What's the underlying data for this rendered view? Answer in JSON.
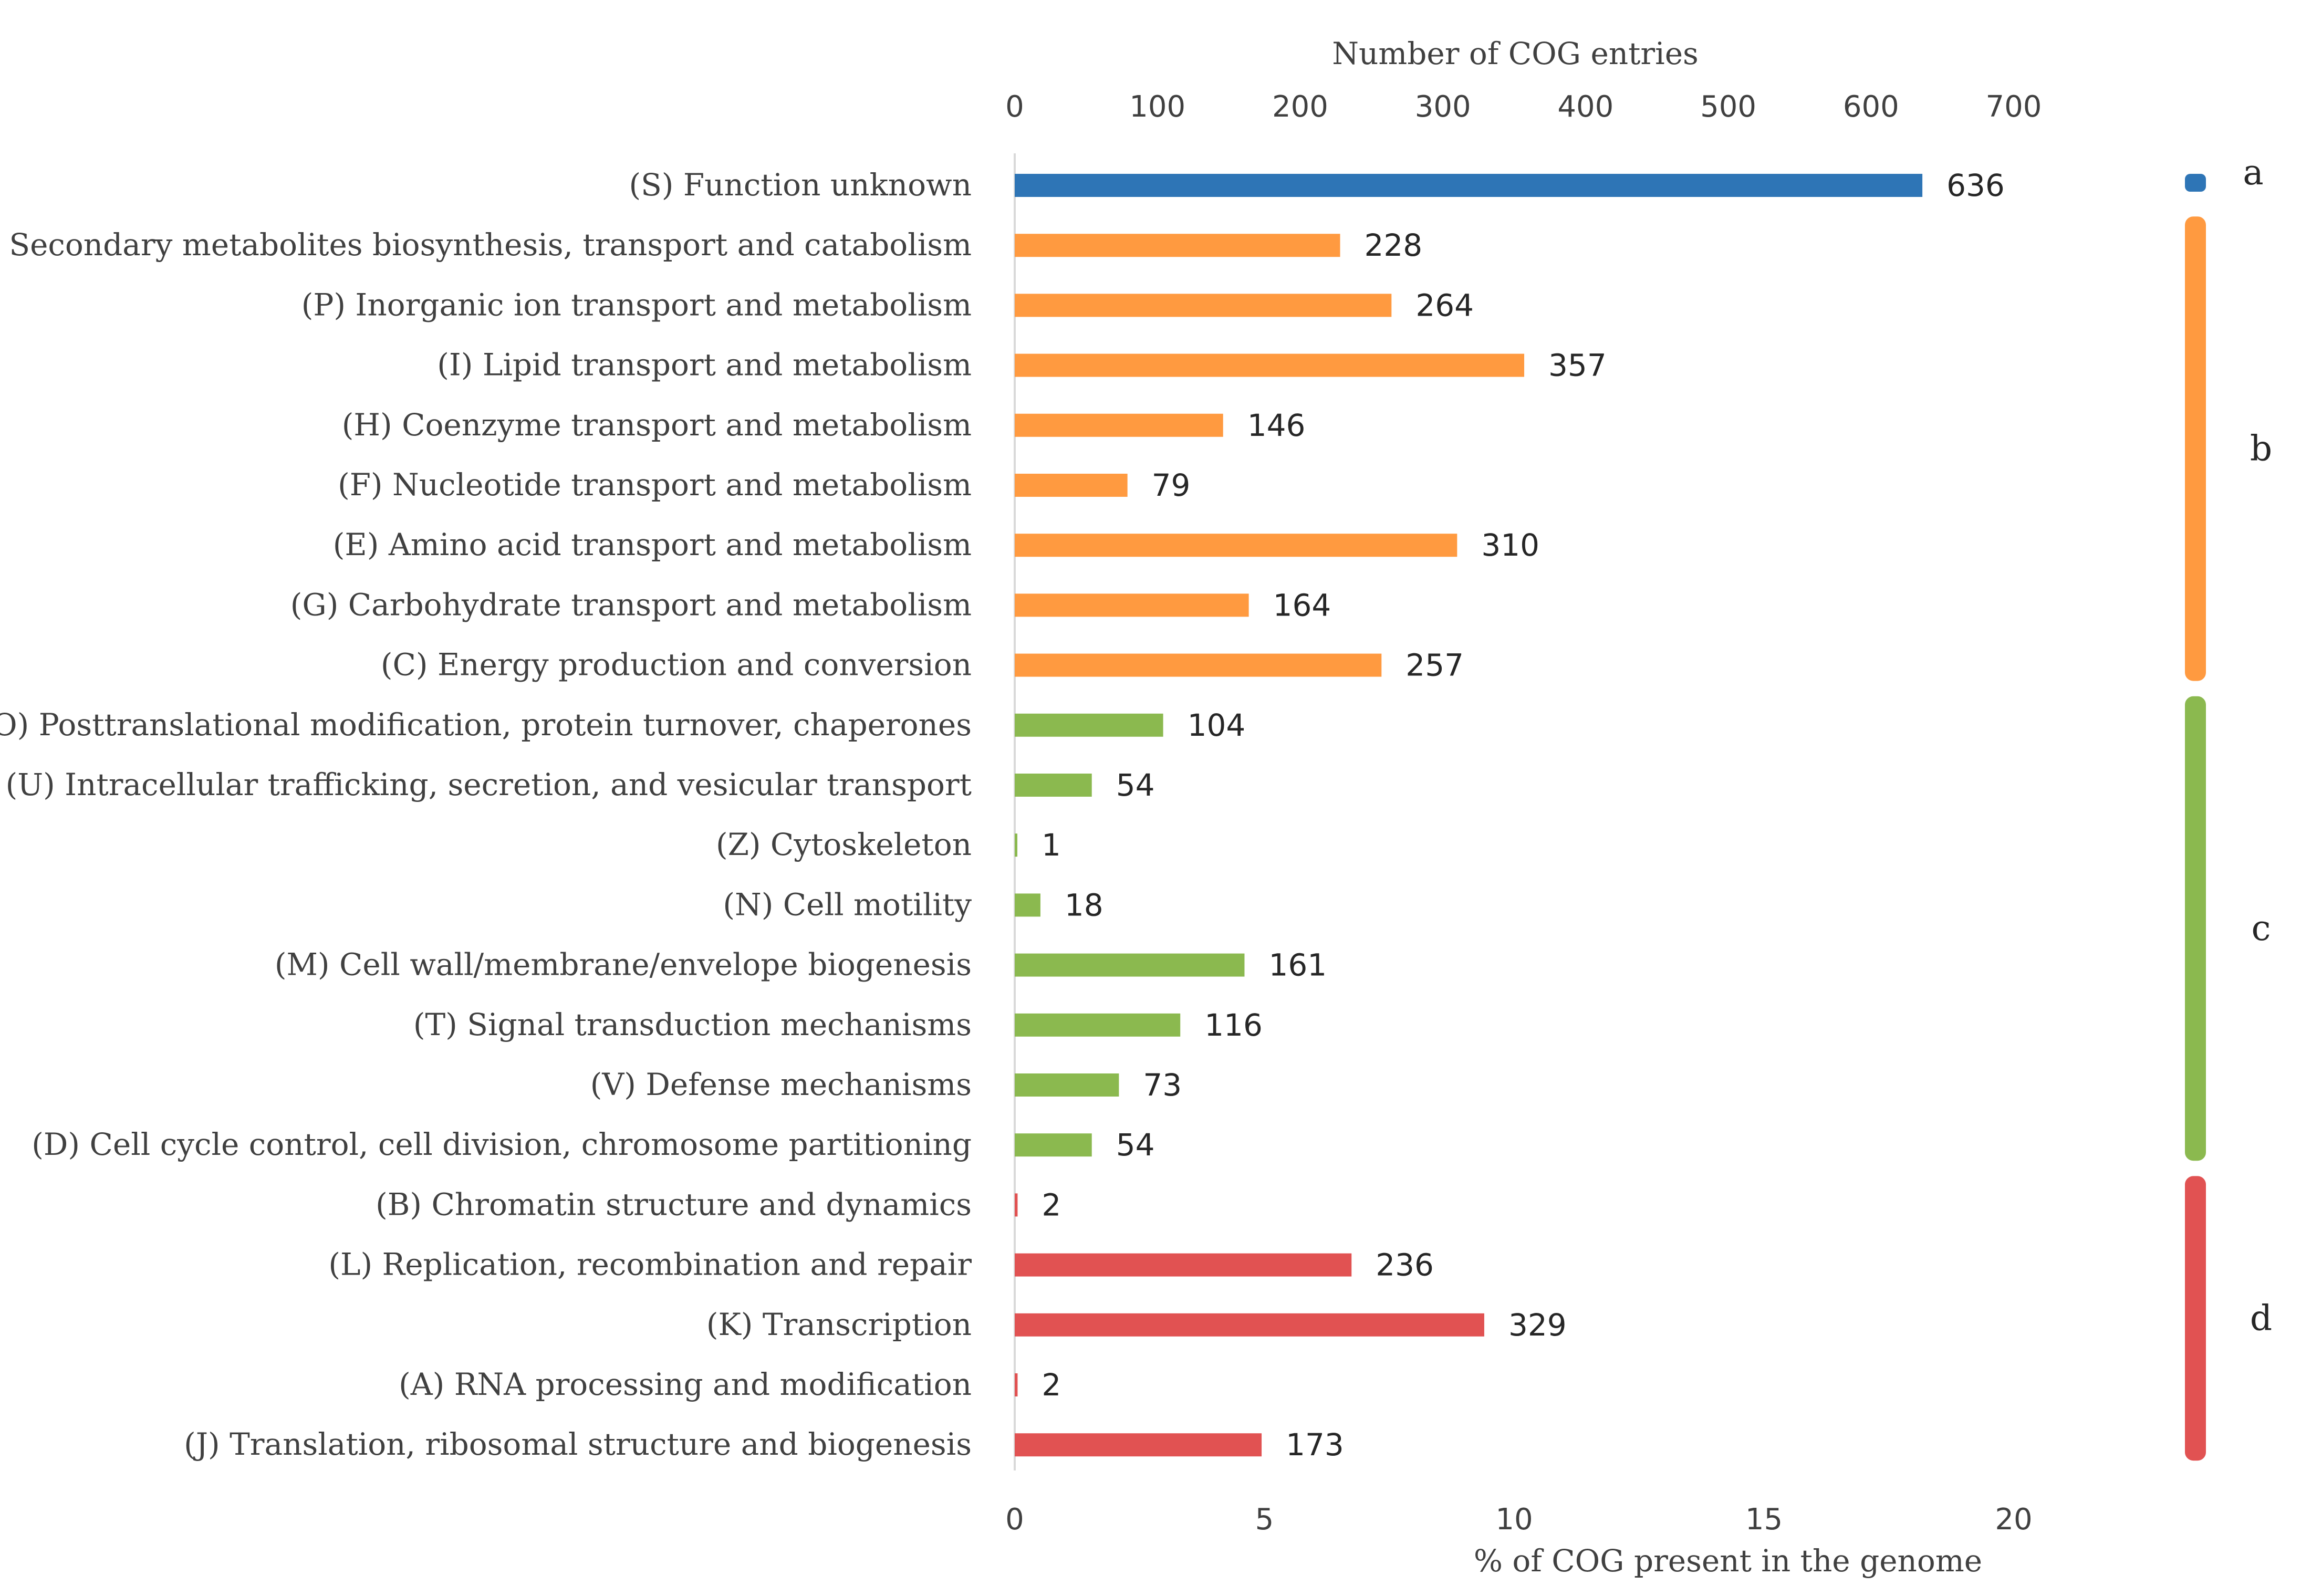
{
  "chart_data": {
    "type": "bar",
    "orientation": "horizontal",
    "top_axis": {
      "title": "Number of COG entries",
      "range": [
        0,
        700
      ],
      "ticks": [
        "0",
        "100",
        "200",
        "300",
        "400",
        "500",
        "600",
        "700"
      ]
    },
    "bottom_axis": {
      "title": "% of COG present in the genome",
      "range": [
        0,
        20
      ],
      "ticks": [
        "0",
        "5",
        "10",
        "15",
        "20"
      ]
    },
    "groups": [
      {
        "key": "a",
        "label": "a",
        "color": "#2e75b6"
      },
      {
        "key": "b",
        "label": "b",
        "color": "#ff9a40"
      },
      {
        "key": "c",
        "label": "c",
        "color": "#8bb94f"
      },
      {
        "key": "d",
        "label": "d",
        "color": "#e15252"
      }
    ],
    "categories": [
      {
        "label": "(S) Function unknown",
        "value": 636,
        "group": "a"
      },
      {
        "label": "(Q) Secondary metabolites biosynthesis, transport and catabolism",
        "value": 228,
        "group": "b"
      },
      {
        "label": "(P) Inorganic ion transport and metabolism",
        "value": 264,
        "group": "b"
      },
      {
        "label": "(I) Lipid transport and metabolism",
        "value": 357,
        "group": "b"
      },
      {
        "label": "(H) Coenzyme transport and metabolism",
        "value": 146,
        "group": "b"
      },
      {
        "label": "(F) Nucleotide transport and metabolism",
        "value": 79,
        "group": "b"
      },
      {
        "label": "(E) Amino acid transport and metabolism",
        "value": 310,
        "group": "b"
      },
      {
        "label": "(G) Carbohydrate transport and metabolism",
        "value": 164,
        "group": "b"
      },
      {
        "label": "(C) Energy production and conversion",
        "value": 257,
        "group": "b"
      },
      {
        "label": "(O) Posttranslational modification, protein turnover, chaperones",
        "value": 104,
        "group": "c"
      },
      {
        "label": "(U) Intracellular trafficking, secretion, and vesicular transport",
        "value": 54,
        "group": "c"
      },
      {
        "label": "(Z) Cytoskeleton",
        "value": 1,
        "group": "c"
      },
      {
        "label": "(N) Cell motility",
        "value": 18,
        "group": "c"
      },
      {
        "label": "(M) Cell wall/membrane/envelope biogenesis",
        "value": 161,
        "group": "c"
      },
      {
        "label": "(T) Signal transduction mechanisms",
        "value": 116,
        "group": "c"
      },
      {
        "label": "(V) Defense mechanisms",
        "value": 73,
        "group": "c"
      },
      {
        "label": "(D) Cell cycle control, cell division, chromosome partitioning",
        "value": 54,
        "group": "c"
      },
      {
        "label": "(B) Chromatin structure and dynamics",
        "value": 2,
        "group": "d"
      },
      {
        "label": "(L) Replication, recombination and repair",
        "value": 236,
        "group": "d"
      },
      {
        "label": "(K) Transcription",
        "value": 329,
        "group": "d"
      },
      {
        "label": "(A) RNA processing and modification",
        "value": 2,
        "group": "d"
      },
      {
        "label": "(J) Translation, ribosomal structure and biogenesis",
        "value": 173,
        "group": "d"
      }
    ]
  }
}
